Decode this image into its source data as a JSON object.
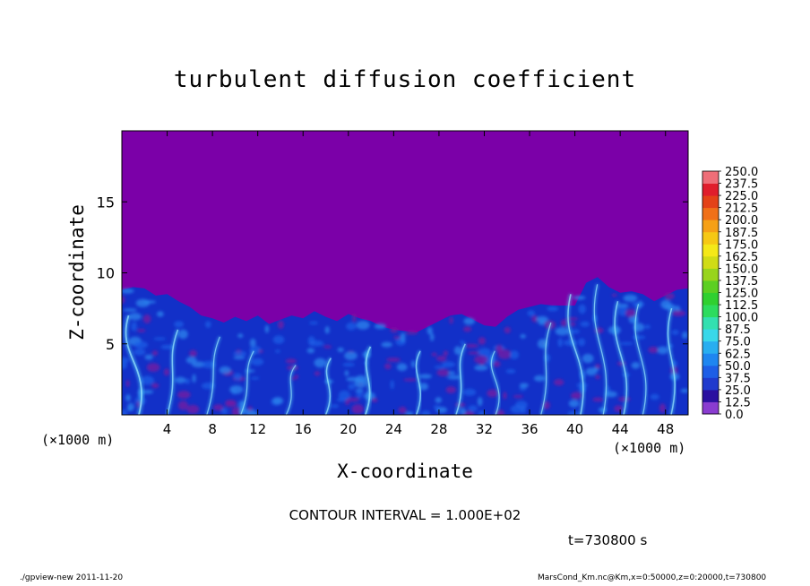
{
  "chart_data": {
    "type": "heatmap",
    "title": "turbulent diffusion coefficient",
    "xlabel": "X-coordinate",
    "ylabel": "Z-coordinate",
    "x_unit": "(×1000 m)",
    "y_unit": "(×1000 m)",
    "xlim": [
      0,
      50
    ],
    "ylim": [
      0,
      20
    ],
    "x_ticks": [
      4,
      8,
      12,
      16,
      20,
      24,
      28,
      32,
      36,
      40,
      44,
      48
    ],
    "y_ticks": [
      5,
      10,
      15
    ],
    "colorbar_levels": [
      "0.0",
      "12.5",
      "25.0",
      "37.5",
      "50.0",
      "62.5",
      "75.0",
      "87.5",
      "100.0",
      "112.5",
      "125.0",
      "137.5",
      "150.0",
      "162.5",
      "175.0",
      "187.5",
      "200.0",
      "212.5",
      "225.0",
      "237.5",
      "250.0"
    ],
    "colorbar_colors": [
      "#8a3cd0",
      "#2a10a0",
      "#1f3acd",
      "#1d5ee6",
      "#1e86f0",
      "#28aef0",
      "#39d8ea",
      "#33e0b0",
      "#2ddc5e",
      "#30d030",
      "#5ccf22",
      "#98d41c",
      "#d0dc16",
      "#f4e818",
      "#f6c814",
      "#f6a016",
      "#f07018",
      "#e44218",
      "#e01e2c",
      "#ee6e78"
    ],
    "background_color": "#7b00a8",
    "boundary_layer_top_km": [
      [
        0,
        8.8
      ],
      [
        1,
        9.0
      ],
      [
        2,
        8.9
      ],
      [
        3,
        8.4
      ],
      [
        4,
        8.5
      ],
      [
        5,
        8.0
      ],
      [
        6,
        7.6
      ],
      [
        7,
        7.0
      ],
      [
        8,
        6.8
      ],
      [
        9,
        6.5
      ],
      [
        10,
        6.9
      ],
      [
        11,
        6.6
      ],
      [
        12,
        7.0
      ],
      [
        13,
        6.4
      ],
      [
        14,
        6.7
      ],
      [
        15,
        7.0
      ],
      [
        16,
        6.8
      ],
      [
        17,
        7.3
      ],
      [
        18,
        6.9
      ],
      [
        19,
        6.6
      ],
      [
        20,
        7.1
      ],
      [
        21,
        6.8
      ],
      [
        22,
        6.6
      ],
      [
        23,
        6.2
      ],
      [
        24,
        6.0
      ],
      [
        25,
        5.9
      ],
      [
        26,
        5.8
      ],
      [
        27,
        6.2
      ],
      [
        28,
        6.6
      ],
      [
        29,
        7.0
      ],
      [
        30,
        7.1
      ],
      [
        31,
        6.7
      ],
      [
        32,
        6.3
      ],
      [
        33,
        6.2
      ],
      [
        34,
        6.9
      ],
      [
        35,
        7.4
      ],
      [
        36,
        7.6
      ],
      [
        37,
        7.8
      ],
      [
        38,
        7.7
      ],
      [
        39,
        7.7
      ],
      [
        40,
        7.7
      ],
      [
        41,
        9.3
      ],
      [
        42,
        9.7
      ],
      [
        43,
        9.0
      ],
      [
        44,
        8.6
      ],
      [
        45,
        8.7
      ],
      [
        46,
        8.5
      ],
      [
        47,
        8.0
      ],
      [
        48,
        8.4
      ],
      [
        49,
        8.8
      ],
      [
        50,
        8.9
      ]
    ],
    "plumes": [
      {
        "x": 1.5,
        "h": 7.0,
        "w": 0.6
      },
      {
        "x": 4.0,
        "h": 6.0,
        "w": 0.5
      },
      {
        "x": 7.5,
        "h": 5.5,
        "w": 0.4
      },
      {
        "x": 10.5,
        "h": 4.5,
        "w": 0.4
      },
      {
        "x": 14.5,
        "h": 3.5,
        "w": 0.4
      },
      {
        "x": 18.0,
        "h": 4.0,
        "w": 0.5
      },
      {
        "x": 21.5,
        "h": 4.8,
        "w": 0.6
      },
      {
        "x": 26.0,
        "h": 4.5,
        "w": 0.5
      },
      {
        "x": 29.5,
        "h": 5.0,
        "w": 0.5
      },
      {
        "x": 33.0,
        "h": 4.5,
        "w": 0.4
      },
      {
        "x": 37.0,
        "h": 6.5,
        "w": 0.4
      },
      {
        "x": 40.5,
        "h": 8.5,
        "w": 0.5
      },
      {
        "x": 42.5,
        "h": 9.2,
        "w": 0.4
      },
      {
        "x": 44.3,
        "h": 8.0,
        "w": 0.5
      },
      {
        "x": 46.0,
        "h": 7.8,
        "w": 0.4
      },
      {
        "x": 48.5,
        "h": 7.5,
        "w": 0.5
      }
    ]
  },
  "annotations": {
    "contour_interval": "CONTOUR INTERVAL = 1.000E+02",
    "time": "t=730800 s"
  },
  "footer": {
    "left": "./gpview-new   2011-11-20",
    "right": "MarsCond_Km.nc@Km,x=0:50000,z=0:20000,t=730800"
  }
}
